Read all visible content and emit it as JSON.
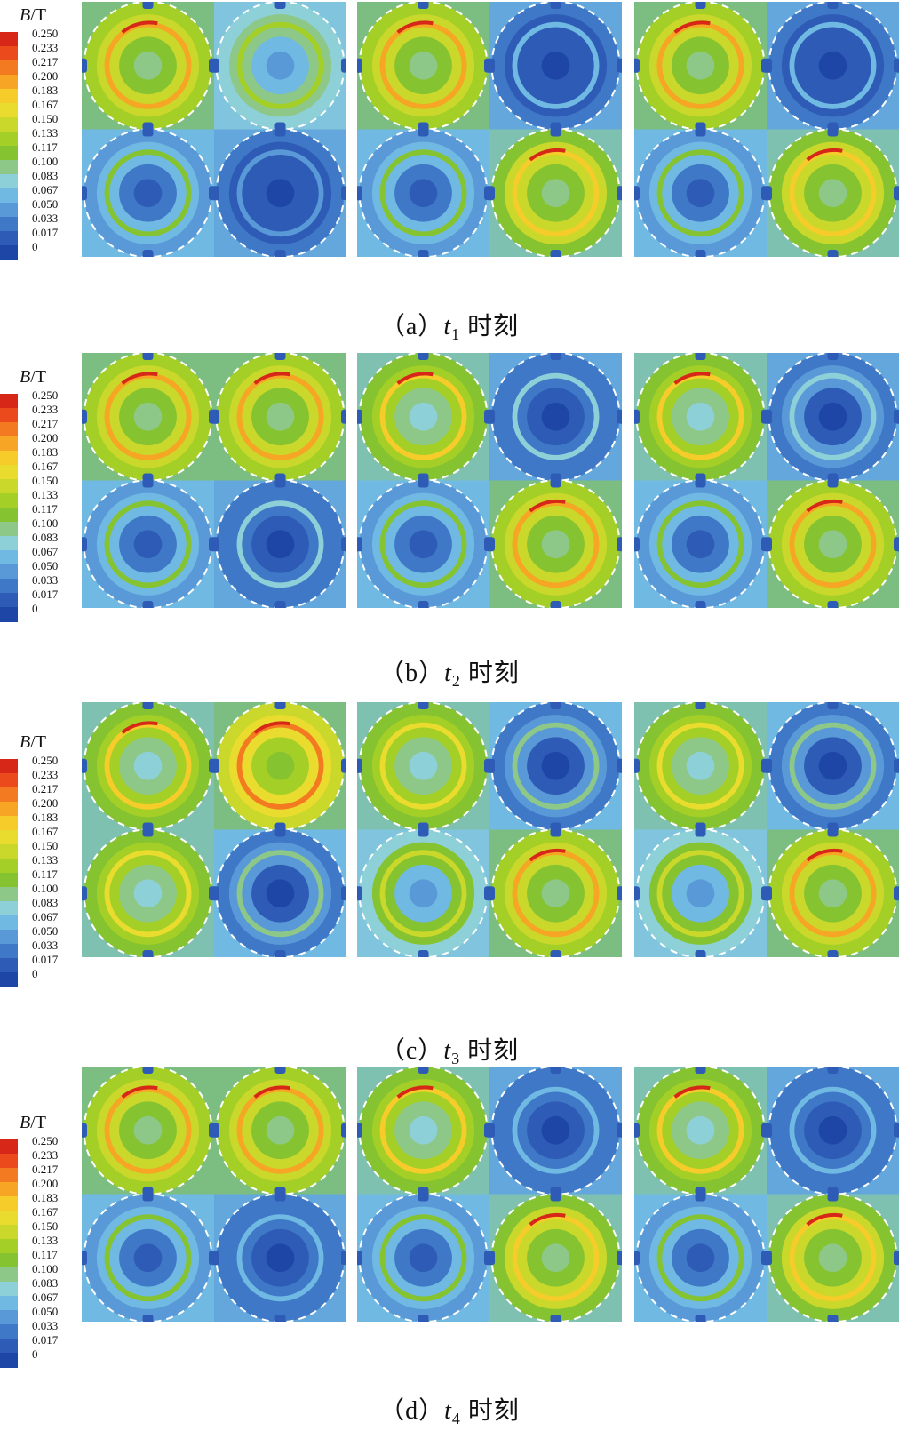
{
  "chart_data": {
    "type": "heatmap",
    "colorbar": {
      "title_var": "B",
      "title_unit": "/T",
      "ticks": [
        "0.250",
        "0.233",
        "0.217",
        "0.200",
        "0.183",
        "0.167",
        "0.150",
        "0.133",
        "0.117",
        "0.100",
        "0.083",
        "0.067",
        "0.050",
        "0.033",
        "0.017",
        "0"
      ],
      "range": [
        0,
        0.25
      ],
      "colors": [
        "#d62718",
        "#ea4a1c",
        "#f47a22",
        "#f6a524",
        "#f5cc2a",
        "#e9dc2e",
        "#c9d82a",
        "#a3cf26",
        "#86c331",
        "#8dc889",
        "#8ed0d8",
        "#6fb9e3",
        "#5a99d7",
        "#3f78c7",
        "#2d5bb5",
        "#1e46a6"
      ]
    },
    "figures": [
      {
        "caption_prefix": "（a）",
        "t_var": "t",
        "t_sub": "1",
        "caption_suffix": "时刻",
        "panels": [
          {
            "field": [
              0.155,
              0.1,
              0.07,
              0.02
            ]
          },
          {
            "field": [
              0.15,
              0.03,
              0.075,
              0.145
            ]
          },
          {
            "field": [
              0.15,
              0.03,
              0.075,
              0.145
            ]
          }
        ]
      },
      {
        "caption_prefix": "（b）",
        "t_var": "t",
        "t_sub": "2",
        "caption_suffix": "时刻",
        "panels": [
          {
            "field": [
              0.155,
              0.15,
              0.075,
              0.045
            ]
          },
          {
            "field": [
              0.14,
              0.04,
              0.075,
              0.15
            ]
          },
          {
            "field": [
              0.14,
              0.05,
              0.075,
              0.15
            ]
          }
        ]
      },
      {
        "caption_prefix": "（c）",
        "t_var": "t",
        "t_sub": "3",
        "caption_suffix": "时刻",
        "panels": [
          {
            "field": [
              0.14,
              0.165,
              0.13,
              0.06
            ]
          },
          {
            "field": [
              0.13,
              0.06,
              0.11,
              0.155
            ]
          },
          {
            "field": [
              0.13,
              0.06,
              0.11,
              0.155
            ]
          }
        ]
      },
      {
        "caption_prefix": "（d）",
        "t_var": "t",
        "t_sub": "4",
        "caption_suffix": "时刻",
        "panels": [
          {
            "field": [
              0.155,
              0.15,
              0.075,
              0.035
            ]
          },
          {
            "field": [
              0.14,
              0.035,
              0.075,
              0.145
            ]
          },
          {
            "field": [
              0.14,
              0.035,
              0.075,
              0.145
            ]
          }
        ]
      }
    ]
  }
}
